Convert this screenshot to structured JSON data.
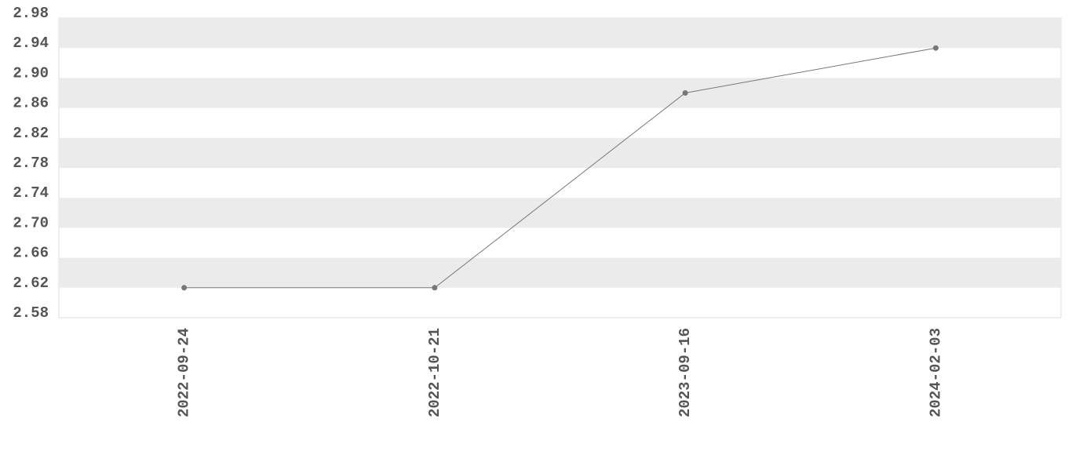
{
  "chart_data": {
    "type": "line",
    "categories": [
      "2022-09-24",
      "2022-10-21",
      "2023-09-16",
      "2024-02-03"
    ],
    "series": [
      {
        "values": [
          2.62,
          2.62,
          2.88,
          2.94
        ],
        "color": "#777777"
      }
    ],
    "ylim": [
      2.58,
      2.98
    ],
    "yticks": [
      2.58,
      2.62,
      2.66,
      {
        "value": 2.7,
        "label": "2.70"
      },
      2.74,
      2.78,
      2.82,
      2.86,
      {
        "value": 2.9,
        "label": "2.90"
      },
      2.94,
      2.98
    ],
    "grid": true
  }
}
